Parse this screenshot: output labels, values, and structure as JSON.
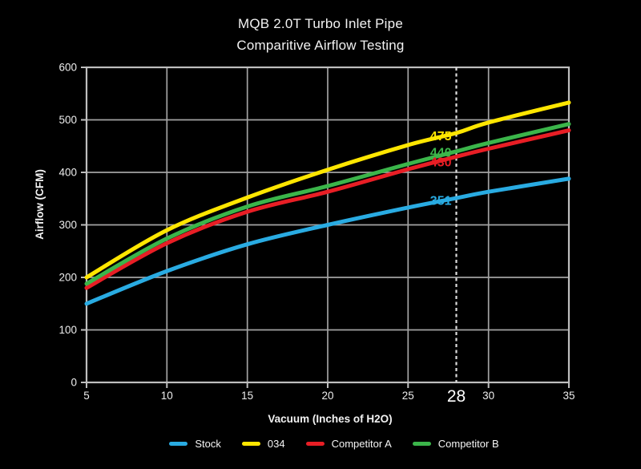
{
  "title": {
    "line1": "MQB 2.0T Turbo Inlet Pipe",
    "line2": "Comparitive Airflow Testing"
  },
  "chart_data": {
    "type": "line",
    "title": "MQB 2.0T Turbo Inlet Pipe Comparitive Airflow Testing",
    "xlabel": "Vacuum (Inches of H2O)",
    "ylabel": "Airflow (CFM)",
    "xlim": [
      5,
      35
    ],
    "ylim": [
      0,
      600
    ],
    "x_ticks": [
      5,
      10,
      15,
      20,
      25,
      30,
      35
    ],
    "y_ticks": [
      0,
      100,
      200,
      300,
      400,
      500,
      600
    ],
    "grid": true,
    "legend_position": "bottom",
    "highlight_x": 28,
    "x": [
      5,
      10,
      15,
      20,
      25,
      28,
      30,
      35
    ],
    "series": [
      {
        "name": "Stock",
        "color": "#29ABE2",
        "values": [
          150,
          212,
          263,
          300,
          333,
          351,
          363,
          388
        ],
        "label_value": 351
      },
      {
        "name": "034",
        "color": "#FFE600",
        "values": [
          200,
          290,
          352,
          405,
          452,
          475,
          495,
          533
        ],
        "label_value": 475
      },
      {
        "name": "Competitor A",
        "color": "#E81E25",
        "values": [
          180,
          265,
          325,
          363,
          406,
          430,
          445,
          480
        ],
        "label_value": 430
      },
      {
        "name": "Competitor B",
        "color": "#3BB54A",
        "values": [
          188,
          274,
          335,
          374,
          416,
          440,
          456,
          492
        ],
        "label_value": 440
      }
    ]
  },
  "colors": {
    "background": "#000000",
    "grid": "#A3A3A3",
    "frame": "#BEBEBE",
    "tick_text": "#EDEDED",
    "highlight_line": "#DCDCDC"
  }
}
